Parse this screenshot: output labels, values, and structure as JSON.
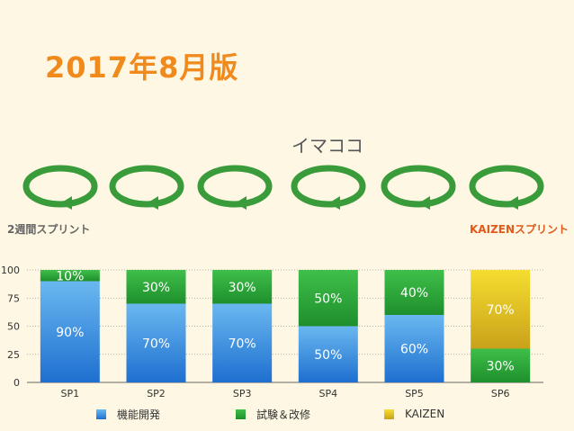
{
  "header": {
    "title": "2017年8月版",
    "now_label": "イマココ",
    "left_label": "2週間スプリント",
    "right_label": "KAIZENスプリント"
  },
  "cycles": [
    {
      "name": "SP1"
    },
    {
      "name": "SP2"
    },
    {
      "name": "SP3"
    },
    {
      "name": "SP4"
    },
    {
      "name": "SP5"
    },
    {
      "name": "SP6"
    }
  ],
  "colors": {
    "blue_top": "#6ab8f0",
    "blue_bottom": "#1e6fd0",
    "green_top": "#3fbf4a",
    "green_bottom": "#1e8f2c",
    "yellow_top": "#f5dd30",
    "yellow_bottom": "#c9a21a",
    "cycle_green": "#3a9b3a"
  },
  "chart_data": {
    "type": "bar",
    "stacked": true,
    "categories": [
      "SP1",
      "SP2",
      "SP3",
      "SP4",
      "SP5",
      "SP6"
    ],
    "series": [
      {
        "name": "機能開発",
        "values": [
          90,
          70,
          70,
          50,
          60,
          0
        ],
        "labels": [
          "90%",
          "70%",
          "70%",
          "50%",
          "60%",
          ""
        ]
      },
      {
        "name": "試験＆改修",
        "values": [
          10,
          30,
          30,
          50,
          40,
          30
        ],
        "labels": [
          "10%",
          "30%",
          "30%",
          "50%",
          "40%",
          "30%"
        ]
      },
      {
        "name": "KAIZEN",
        "values": [
          0,
          0,
          0,
          0,
          0,
          70
        ],
        "labels": [
          "",
          "",
          "",
          "",
          "",
          "70%"
        ]
      }
    ],
    "yticks": [
      "0",
      "25",
      "50",
      "75",
      "100"
    ],
    "ylim": [
      0,
      100
    ],
    "legend_position": "bottom"
  }
}
